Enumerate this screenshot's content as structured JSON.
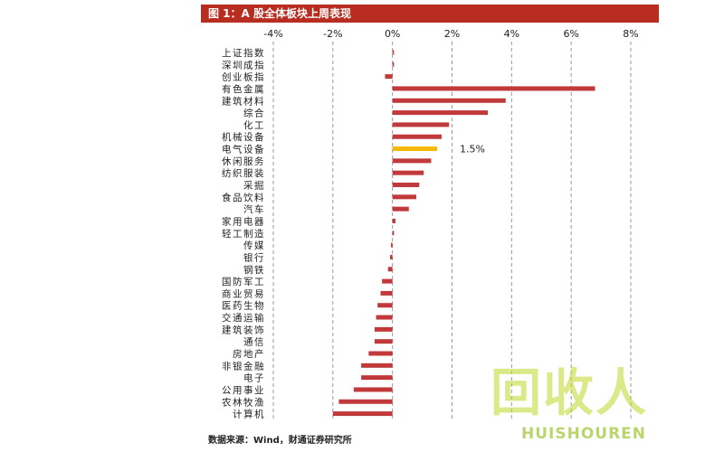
{
  "source_note": "数据来源：Wind，财通证券研究所",
  "watermark": {
    "main": "回收人",
    "sub": "HUISHOUREN"
  },
  "colors": {
    "title_bg": "#b82d1f",
    "bar": "#c0393b",
    "highlight": "#f5b800",
    "grid": "#999999"
  },
  "chart_data": {
    "type": "bar",
    "orientation": "horizontal",
    "title": "图 1：A 股全体板块上周表现",
    "xlim": [
      -4,
      8
    ],
    "x_ticks": [
      "-4%",
      "-2%",
      "0%",
      "2%",
      "4%",
      "6%",
      "8%"
    ],
    "x_tick_values": [
      -4,
      -2,
      0,
      2,
      4,
      6,
      8
    ],
    "grid": "vertical dashed",
    "highlight_category": "电气设备",
    "annotation": "1.5%",
    "categories": [
      "上证指数",
      "深圳成指",
      "创业板指",
      "有色金属",
      "建筑材料",
      "综合",
      "化工",
      "机械设备",
      "电气设备",
      "休闲服务",
      "纺织服装",
      "采掘",
      "食品饮料",
      "汽车",
      "家用电器",
      "轻工制造",
      "传媒",
      "银行",
      "钢铁",
      "国防军工",
      "商业贸易",
      "医药生物",
      "交通运输",
      "建筑装饰",
      "通信",
      "房地产",
      "非银金融",
      "电子",
      "公用事业",
      "农林牧渔",
      "计算机"
    ],
    "values": [
      0.05,
      0.05,
      -0.25,
      6.8,
      3.8,
      3.2,
      1.9,
      1.65,
      1.5,
      1.3,
      1.05,
      0.9,
      0.8,
      0.55,
      0.1,
      0.05,
      -0.05,
      -0.08,
      -0.15,
      -0.35,
      -0.4,
      -0.5,
      -0.55,
      -0.6,
      -0.6,
      -0.8,
      -1.05,
      -1.05,
      -1.3,
      -1.8,
      -2.0
    ]
  }
}
